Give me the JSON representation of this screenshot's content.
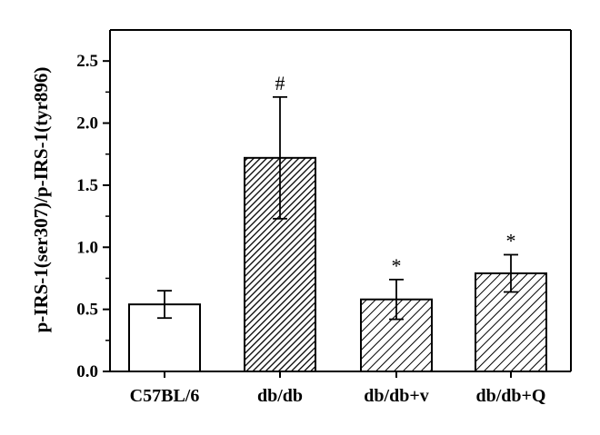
{
  "chart_data": {
    "type": "bar",
    "title": "",
    "xlabel": "",
    "ylabel": "p-IRS-1(ser307)/p-IRS-1(tyr896)",
    "ylim": [
      0,
      2.75
    ],
    "yticks": [
      0.0,
      0.5,
      1.0,
      1.5,
      2.0,
      2.5
    ],
    "ytick_labels": [
      "0.0",
      "0.5",
      "1.0",
      "1.5",
      "2.0",
      "2.5"
    ],
    "categories": [
      "C57BL/6",
      "db/db",
      "db/db+v",
      "db/db+Q"
    ],
    "values": [
      0.54,
      1.72,
      0.58,
      0.79
    ],
    "errors": [
      0.11,
      0.49,
      0.16,
      0.15
    ],
    "markers": [
      "",
      "#",
      "*",
      "*"
    ],
    "fills": [
      "open",
      "dense-hatch",
      "hatch",
      "hatch"
    ],
    "grid": false,
    "legend": "none",
    "colors": {
      "axis": "#000000",
      "bar_fill": "#ffffff",
      "hatch": "#000000"
    }
  }
}
